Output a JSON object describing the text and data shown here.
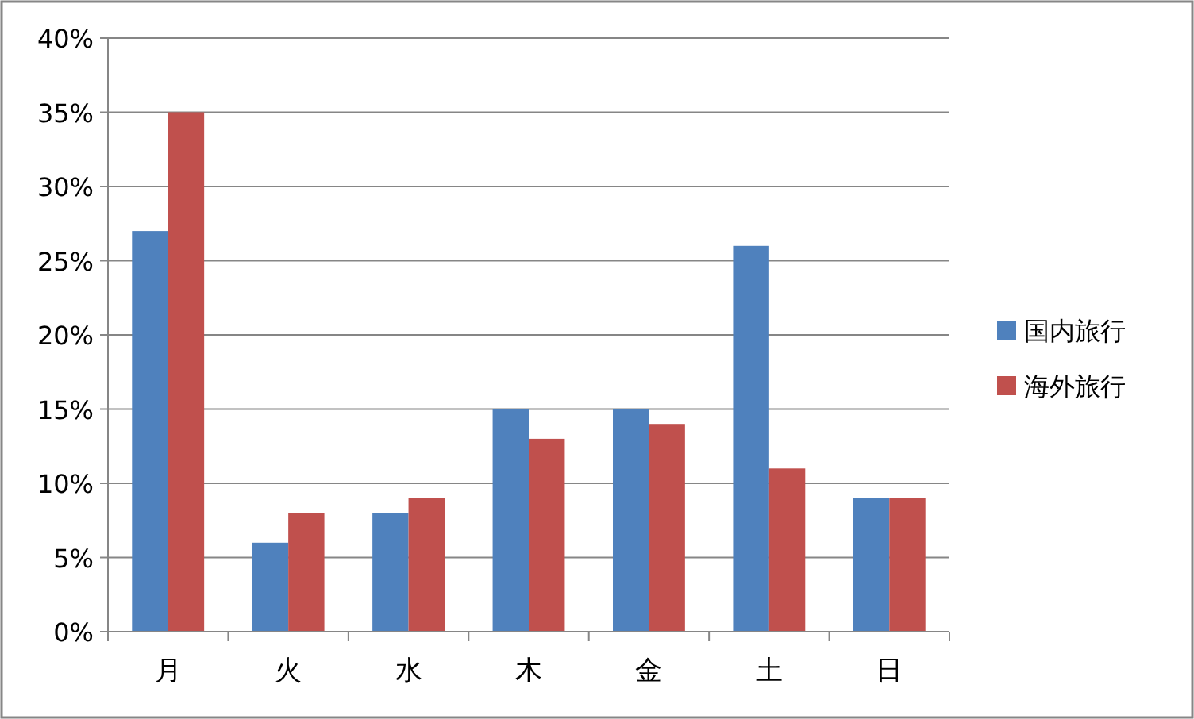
{
  "chart_data": {
    "type": "bar",
    "categories": [
      "月",
      "火",
      "水",
      "木",
      "金",
      "土",
      "日"
    ],
    "series": [
      {
        "name": "国内旅行",
        "color": "#4f81bd",
        "values": [
          27,
          6,
          8,
          15,
          15,
          26,
          9
        ]
      },
      {
        "name": "海外旅行",
        "color": "#c0504d",
        "values": [
          35,
          8,
          9,
          13,
          14,
          11,
          9
        ]
      }
    ],
    "ylim": [
      0,
      40
    ],
    "yticks": [
      {
        "value": 0,
        "label": "0%"
      },
      {
        "value": 5,
        "label": "5%"
      },
      {
        "value": 10,
        "label": "10%"
      },
      {
        "value": 15,
        "label": "15%"
      },
      {
        "value": 20,
        "label": "20%"
      },
      {
        "value": 25,
        "label": "25%"
      },
      {
        "value": 30,
        "label": "30%"
      },
      {
        "value": 35,
        "label": "35%"
      },
      {
        "value": 40,
        "label": "40%"
      }
    ],
    "grid": "y",
    "legend": "right"
  }
}
